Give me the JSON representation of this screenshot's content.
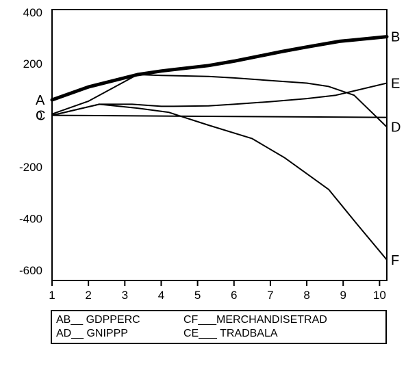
{
  "chart_data": {
    "type": "line",
    "title": "",
    "xlabel": "",
    "ylabel": "",
    "x_ticks": [
      "1",
      "2",
      "3",
      "4",
      "5",
      "6",
      "7",
      "8",
      "9",
      "10"
    ],
    "y_ticks": [
      "400",
      "200",
      "0",
      "-200",
      "-400",
      "-600"
    ],
    "xlim": [
      1,
      10.2
    ],
    "ylim": [
      -640,
      410
    ],
    "grid": false,
    "series": [
      {
        "name": "GDPPERC",
        "start_label": "A",
        "end_label": "B",
        "emphasis": "bold",
        "x": [
          1,
          2,
          3.35,
          4,
          5.3,
          6,
          7.3,
          8,
          8.9,
          10.2
        ],
        "y": [
          60,
          110,
          158,
          172,
          193,
          210,
          247,
          265,
          287,
          305
        ]
      },
      {
        "name": "GNIPPP",
        "start_label": "A",
        "end_label": "D",
        "emphasis": "normal",
        "x": [
          1,
          2,
          3.35,
          4,
          5.3,
          6,
          7,
          8,
          8.6,
          9.3,
          10.2
        ],
        "y": [
          5,
          55,
          158,
          155,
          151,
          145,
          135,
          125,
          112,
          78,
          -45
        ]
      },
      {
        "name": "TRADBALA",
        "start_label": "C",
        "end_label": "E",
        "emphasis": "normal",
        "x": [
          1,
          2.3,
          3.2,
          4,
          4.3,
          5.3,
          6,
          7,
          8,
          8.8,
          10.2
        ],
        "y": [
          0,
          43,
          43,
          35,
          35,
          37,
          43,
          53,
          65,
          78,
          125
        ]
      },
      {
        "name": "MERCHANDISETRAD",
        "start_label": "C",
        "end_label": "F",
        "emphasis": "normal",
        "x": [
          1,
          2.3,
          3.35,
          4.2,
          5.3,
          6.5,
          7.4,
          8.6,
          9.4,
          10.2
        ],
        "y": [
          0,
          43,
          28,
          12,
          -38,
          -90,
          -165,
          -287,
          -425,
          -560
        ]
      },
      {
        "name": "",
        "emphasis": "normal",
        "x": [
          1,
          10.2
        ],
        "y": [
          0,
          -8
        ]
      }
    ],
    "left_labels": [
      {
        "text": "A",
        "y": 60
      },
      {
        "text": "C",
        "y": 0
      }
    ],
    "legend": {
      "placement": "bottom",
      "rows": [
        [
          "AB__ GDPPERC",
          "CF___MERCHANDISETRAD"
        ],
        [
          "AD__ GNIPPP",
          "CE___ TRADBALA"
        ]
      ]
    }
  }
}
